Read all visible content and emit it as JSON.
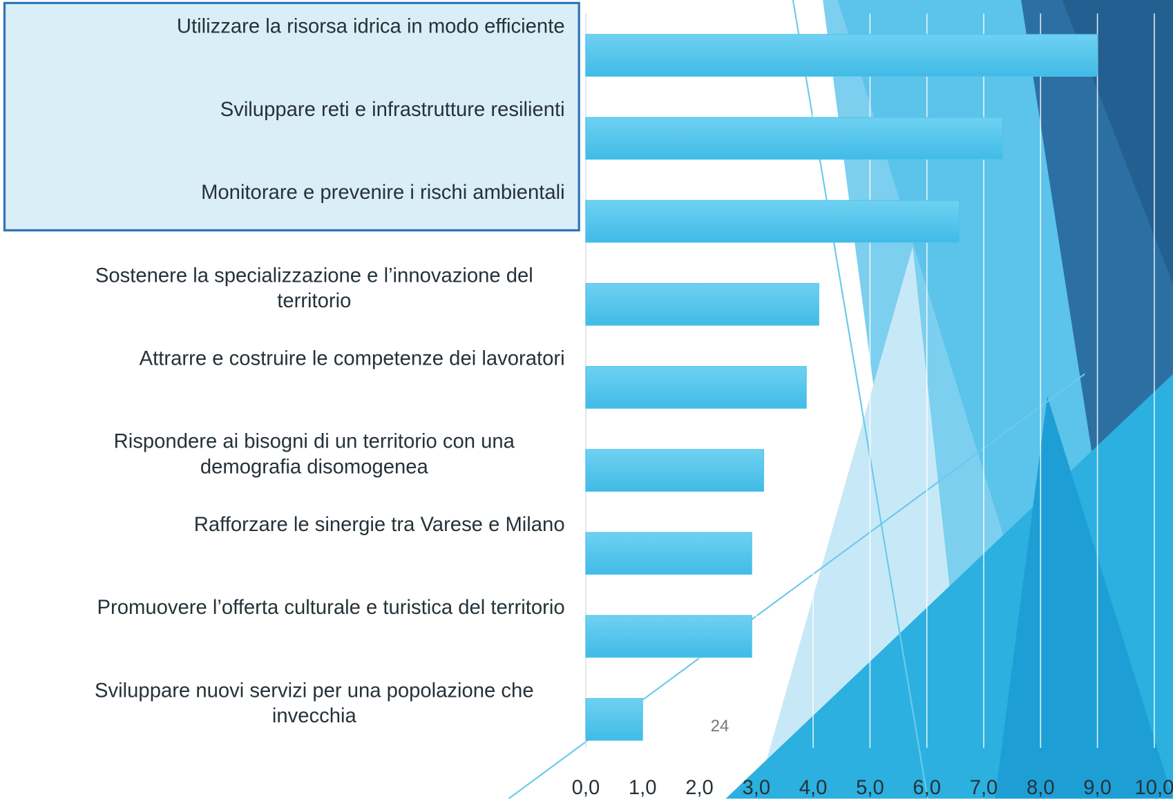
{
  "chart_data": {
    "type": "bar",
    "orientation": "horizontal",
    "categories": [
      "Utilizzare la risorsa idrica in modo efficiente",
      "Sviluppare reti e infrastrutture resilienti",
      "Monitorare e prevenire i rischi ambientali",
      "Sostenere la specializzazione e l’innovazione del territorio",
      "Attrarre e costruire le competenze dei lavoratori",
      "Rispondere ai bisogni di un territorio con una demografia disomogenea",
      "Rafforzare le sinergie tra Varese e Milano",
      "Promuovere l’offerta culturale e turistica del territorio",
      "Sviluppare nuovi servizi per una popolazione che invecchia"
    ],
    "values": [
      9.0,
      7.33,
      6.57,
      4.1,
      3.88,
      3.13,
      2.92,
      2.92,
      1.0
    ],
    "color": "#4fc3ec",
    "xlim": [
      0,
      10
    ],
    "xticks": [
      {
        "value": 0,
        "label": "0,0"
      },
      {
        "value": 1,
        "label": "1,0"
      },
      {
        "value": 2,
        "label": "2,0"
      },
      {
        "value": 3,
        "label": "3,0"
      },
      {
        "value": 4,
        "label": "4,0"
      },
      {
        "value": 5,
        "label": "5,0"
      },
      {
        "value": 6,
        "label": "6,0"
      },
      {
        "value": 7,
        "label": "7,0"
      },
      {
        "value": 8,
        "label": "8,0"
      },
      {
        "value": 9,
        "label": "9,0"
      },
      {
        "value": 10,
        "label": "10,0"
      }
    ],
    "grid": true
  },
  "page_number": "24"
}
